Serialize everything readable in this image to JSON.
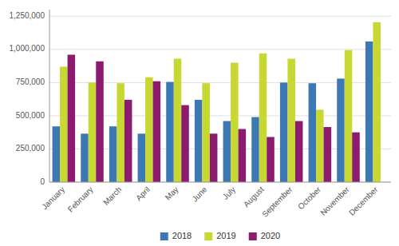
{
  "chart_data": {
    "type": "bar",
    "categories": [
      "January",
      "February",
      "March",
      "April",
      "May",
      "June",
      "July",
      "August",
      "September",
      "October",
      "November",
      "December"
    ],
    "series": [
      {
        "name": "2018",
        "color": "#3c78b4",
        "values": [
          420000,
          365000,
          420000,
          365000,
          755000,
          620000,
          460000,
          490000,
          750000,
          745000,
          780000,
          1060000
        ]
      },
      {
        "name": "2019",
        "color": "#c8d832",
        "values": [
          870000,
          750000,
          745000,
          790000,
          930000,
          745000,
          900000,
          970000,
          930000,
          545000,
          995000,
          1205000
        ]
      },
      {
        "name": "2020",
        "color": "#8c1a6e",
        "values": [
          960000,
          910000,
          620000,
          760000,
          580000,
          365000,
          400000,
          340000,
          460000,
          415000,
          375000,
          0
        ]
      }
    ],
    "ylim": [
      0,
      1300000
    ],
    "yticks": [
      0,
      {
        "value": 250000,
        "label": "250,000"
      },
      {
        "value": 500000,
        "label": "500,000"
      },
      {
        "value": 750000,
        "label": "750,000"
      },
      {
        "value": 1000000,
        "label": "1,000,000"
      },
      {
        "value": 1250000,
        "label": "1,250,000"
      }
    ],
    "grid": true,
    "legend": "bottom"
  }
}
